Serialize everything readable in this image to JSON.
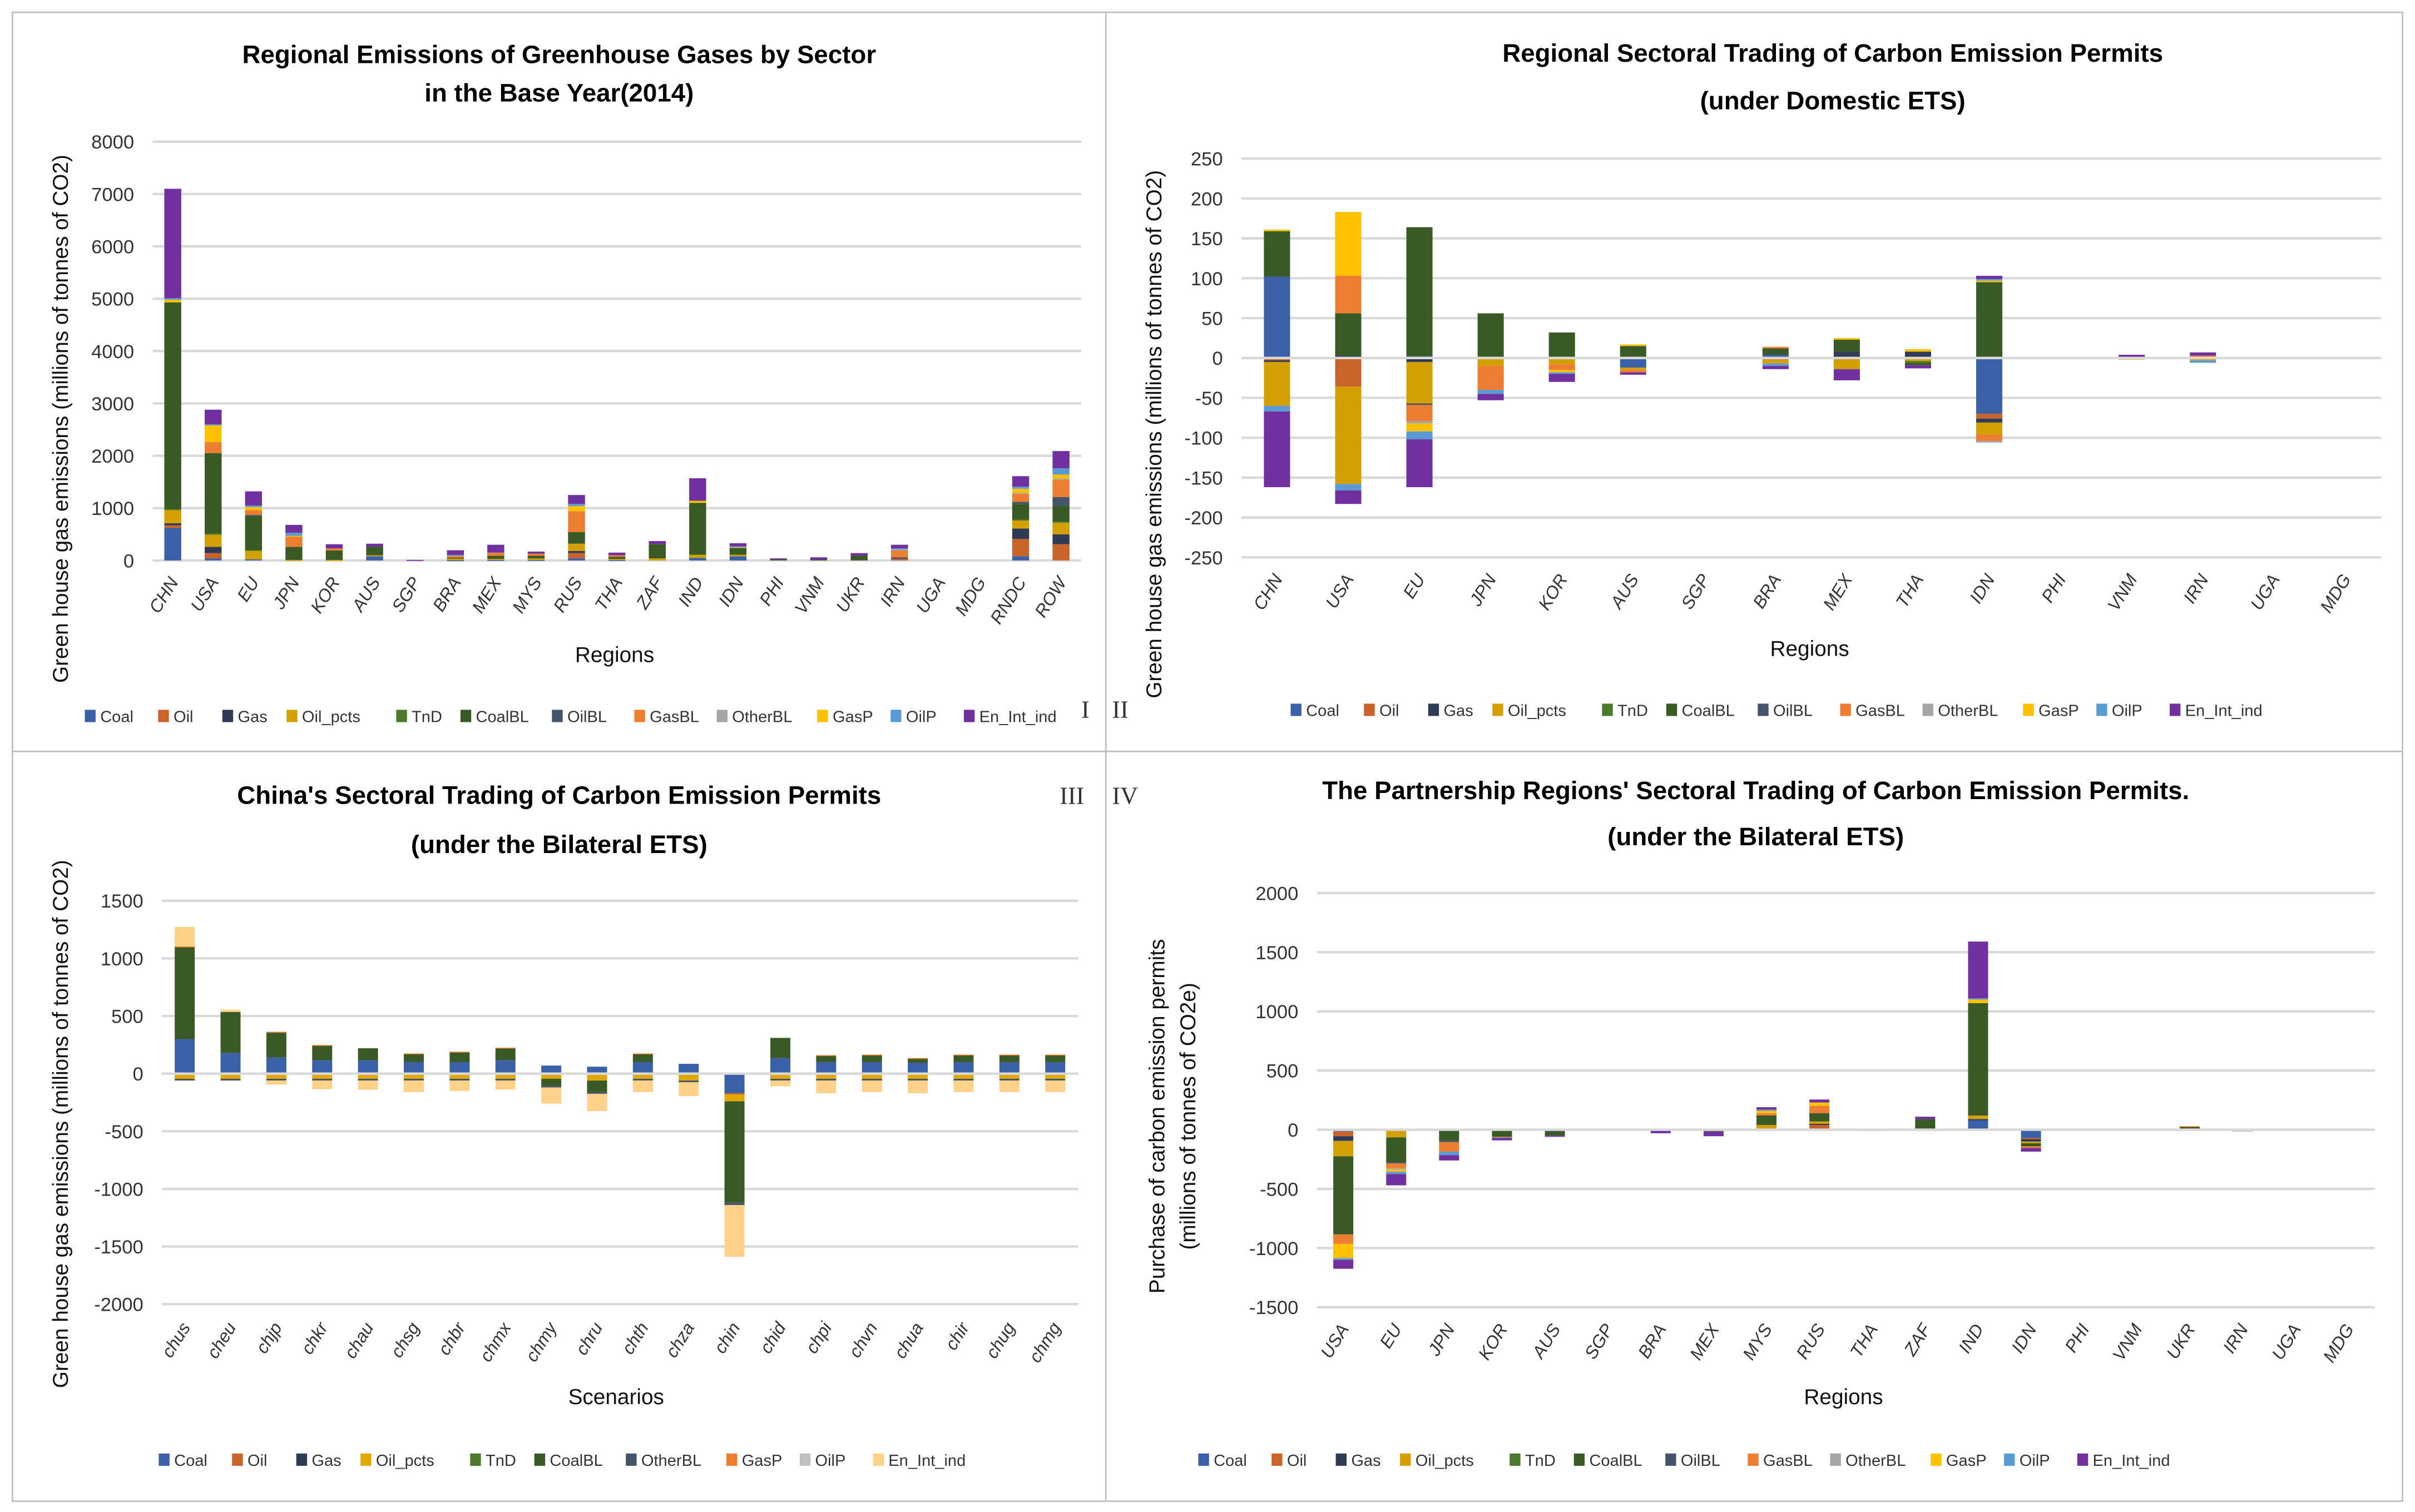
{
  "panel_labels": {
    "p1": "I",
    "p2": "II",
    "p3": "III",
    "p4": "IV"
  },
  "chart_data": [
    {
      "type": "bar",
      "stacked": true,
      "title_lines": [
        "Regional Emissions of Greenhouse Gases by Sector",
        "in the Base Year(2014)"
      ],
      "xlabel": "Regions",
      "ylabel": "Green house gas  emissions (millions of tonnes of CO2)",
      "ylim": [
        0,
        8000
      ],
      "yticks": [
        0,
        1000,
        2000,
        3000,
        4000,
        5000,
        6000,
        7000,
        8000
      ],
      "grid": true,
      "legend_position": "bottom",
      "categories": [
        "CHN",
        "USA",
        "EU",
        "JPN",
        "KOR",
        "AUS",
        "SGP",
        "BRA",
        "MEX",
        "MYS",
        "RUS",
        "THA",
        "ZAF",
        "IND",
        "IDN",
        "PHI",
        "VNM",
        "UKR",
        "IRN",
        "UGA",
        "MDG",
        "RNDC",
        "ROW"
      ],
      "series": [
        {
          "name": "Coal",
          "color": "#3a60a8",
          "values": {
            "CHN": 620,
            "USA": 40,
            "EU": 20,
            "AUS": 80,
            "BRA": 5,
            "MEX": 10,
            "MYS": 10,
            "RUS": 40,
            "THA": 10,
            "IND": 50,
            "IDN": 80,
            "RNDC": 80
          }
        },
        {
          "name": "Oil",
          "color": "#c8642a",
          "values": {
            "CHN": 50,
            "USA": 100,
            "RUS": 100,
            "IRN": 30,
            "RNDC": 330,
            "ROW": 310
          }
        },
        {
          "name": "Gas",
          "color": "#2f3b55",
          "values": {
            "CHN": 40,
            "USA": 120,
            "RUS": 40,
            "RNDC": 200,
            "ROW": 190
          }
        },
        {
          "name": "Oil_pcts",
          "color": "#d4a000",
          "values": {
            "CHN": 260,
            "USA": 240,
            "EU": 170,
            "JPN": 10,
            "KOR": 10,
            "AUS": 20,
            "BRA": 30,
            "MEX": 20,
            "MYS": 30,
            "RUS": 140,
            "THA": 20,
            "ZAF": 40,
            "IND": 60,
            "IDN": 30,
            "RNDC": 160,
            "ROW": 220
          }
        },
        {
          "name": "TnD",
          "color": "#4a7a2a",
          "values": {
            "CHN": 10,
            "USA": 10,
            "EU": 10,
            "RNDC": 10,
            "ROW": 20
          }
        },
        {
          "name": "CoalBL",
          "color": "#3a5a25",
          "values": {
            "CHN": 3950,
            "USA": 1540,
            "EU": 650,
            "JPN": 250,
            "KOR": 180,
            "AUS": 160,
            "BRA": 20,
            "MEX": 60,
            "MYS": 50,
            "RUS": 220,
            "THA": 40,
            "ZAF": 270,
            "IND": 990,
            "IDN": 130,
            "PHI": 20,
            "VNM": 20,
            "UKR": 90,
            "RNDC": 300,
            "ROW": 300
          }
        },
        {
          "name": "OilBL",
          "color": "#44546a",
          "values": {
            "EU": 20,
            "IRN": 30,
            "RNDC": 40,
            "ROW": 170
          }
        },
        {
          "name": "GasBL",
          "color": "#ed7d31",
          "values": {
            "USA": 210,
            "EU": 90,
            "JPN": 200,
            "KOR": 40,
            "BRA": 30,
            "MEX": 60,
            "MYS": 40,
            "RUS": 400,
            "THA": 30,
            "IRN": 130,
            "RNDC": 150,
            "ROW": 330
          }
        },
        {
          "name": "OtherBL",
          "color": "#a5a5a5",
          "values": {
            "IRN": 20,
            "RNDC": 20,
            "ROW": 20
          }
        },
        {
          "name": "GasP",
          "color": "#ffc000",
          "values": {
            "CHN": 50,
            "USA": 320,
            "EU": 60,
            "JPN": 10,
            "RUS": 100,
            "IND": 40,
            "IDN": 20,
            "RNDC": 80,
            "ROW": 80
          }
        },
        {
          "name": "OilP",
          "color": "#5b9bd5",
          "values": {
            "CHN": 30,
            "USA": 20,
            "EU": 30,
            "JPN": 60,
            "BRA": 20,
            "RUS": 40,
            "IDN": 10,
            "IRN": 20,
            "RNDC": 40,
            "ROW": 120
          }
        },
        {
          "name": "En_Int_ind",
          "color": "#7030a0",
          "values": {
            "CHN": 2090,
            "USA": 280,
            "EU": 270,
            "JPN": 150,
            "KOR": 80,
            "AUS": 60,
            "SGP": 10,
            "BRA": 90,
            "MEX": 150,
            "MYS": 40,
            "RUS": 170,
            "THA": 50,
            "ZAF": 60,
            "IND": 430,
            "IDN": 60,
            "PHI": 20,
            "VNM": 40,
            "UKR": 50,
            "IRN": 70,
            "RNDC": 200,
            "ROW": 330
          }
        }
      ]
    },
    {
      "type": "bar",
      "stacked": true,
      "title_lines": [
        "Regional Sectoral Trading of Carbon Emission Permits",
        "(under Domestic ETS)"
      ],
      "xlabel": "Regions",
      "ylabel": "Green house gas  emissions (millions of tonnes of CO2)",
      "ylim": [
        -250,
        250
      ],
      "yticks": [
        -250,
        -200,
        -150,
        -100,
        -50,
        0,
        50,
        100,
        150,
        200,
        250
      ],
      "grid": true,
      "legend_position": "bottom",
      "categories": [
        "CHN",
        "USA",
        "EU",
        "JPN",
        "KOR",
        "AUS",
        "SGP",
        "BRA",
        "MEX",
        "THA",
        "IDN",
        "PHI",
        "VNM",
        "IRN",
        "UGA",
        "MDG"
      ],
      "series": [
        {
          "name": "Coal",
          "color": "#3a60a8",
          "values": {
            "CHN": 102,
            "EU": 2,
            "AUS": -12,
            "BRA": 4,
            "IDN": -70
          }
        },
        {
          "name": "Oil",
          "color": "#c8642a",
          "values": {
            "CHN": -3,
            "USA": -36,
            "BRA": -2,
            "MEX": -2,
            "IDN": -6
          }
        },
        {
          "name": "Gas",
          "color": "#2f3b55",
          "values": {
            "CHN": -2,
            "USA": 3,
            "EU": -5,
            "MEX": 8,
            "THA": 8,
            "IDN": -5
          }
        },
        {
          "name": "Oil_pcts",
          "color": "#d4a000",
          "values": {
            "CHN": -55,
            "USA": -122,
            "EU": -52,
            "JPN": -10,
            "KOR": -8,
            "AUS": -3,
            "BRA": -5,
            "MEX": -12,
            "THA": -4,
            "IDN": -15,
            "VNM": -2,
            "IRN": -3
          }
        },
        {
          "name": "TnD",
          "color": "#4a7a2a",
          "values": {
            "THA": -2
          }
        },
        {
          "name": "CoalBL",
          "color": "#3a5a25",
          "values": {
            "CHN": 57,
            "USA": 53,
            "EU": 162,
            "JPN": 56,
            "KOR": 32,
            "AUS": 15,
            "BRA": 8,
            "MEX": 15,
            "THA": -3,
            "IDN": 95
          }
        },
        {
          "name": "OilBL",
          "color": "#44546a",
          "values": {
            "EU": -2
          }
        },
        {
          "name": "GasBL",
          "color": "#ed7d31",
          "values": {
            "USA": 47,
            "EU": -20,
            "JPN": -30,
            "KOR": -7,
            "AUS": -3,
            "BRA": 2,
            "IDN": -8,
            "IRN": 3
          }
        },
        {
          "name": "OtherBL",
          "color": "#a5a5a5",
          "values": {
            "EU": -3,
            "IDN": -2
          }
        },
        {
          "name": "GasP",
          "color": "#ffc000",
          "values": {
            "CHN": 2,
            "USA": 80,
            "EU": -10,
            "KOR": -3,
            "AUS": 2,
            "SGP": 1,
            "MEX": 2,
            "THA": 3,
            "IDN": 2
          }
        },
        {
          "name": "OilP",
          "color": "#5b9bd5",
          "values": {
            "CHN": -7,
            "USA": -8,
            "EU": -10,
            "JPN": -5,
            "KOR": -2,
            "BRA": -3,
            "IDN": 2,
            "IRN": -3
          }
        },
        {
          "name": "En_Int_ind",
          "color": "#7030a0",
          "values": {
            "CHN": -95,
            "USA": -17,
            "EU": -60,
            "JPN": -8,
            "KOR": -10,
            "AUS": -3,
            "SGP": -1,
            "BRA": -4,
            "MEX": -14,
            "THA": -4,
            "IDN": 4,
            "PHI": -1,
            "VNM": 4,
            "IRN": 4
          }
        }
      ]
    },
    {
      "type": "bar",
      "stacked": true,
      "title_lines": [
        "China's Sectoral Trading of Carbon Emission Permits",
        "(under the Bilateral ETS)"
      ],
      "xlabel": "Scenarios",
      "ylabel": "Green house gas  emissions (millions of tonnes of CO2)",
      "ylim": [
        -2000,
        1500
      ],
      "yticks": [
        -2000,
        -1500,
        -1000,
        -500,
        0,
        500,
        1000,
        1500
      ],
      "grid": true,
      "legend_position": "bottom",
      "categories": [
        "chus",
        "cheu",
        "chjp",
        "chkr",
        "chau",
        "chsg",
        "chbr",
        "chmx",
        "chmy",
        "chru",
        "chth",
        "chza",
        "chin",
        "chid",
        "chpi",
        "chvn",
        "chua",
        "chir",
        "chug",
        "chmg"
      ],
      "series": [
        {
          "name": "Coal",
          "color": "#3a60a8",
          "values": {
            "chus": 300,
            "cheu": 180,
            "chjp": 140,
            "chkr": 115,
            "chau": 115,
            "chsg": 100,
            "chbr": 100,
            "chmx": 115,
            "chmy": 70,
            "chru": 60,
            "chth": 100,
            "chza": 85,
            "chin": -170,
            "chid": 135,
            "chpi": 100,
            "chvn": 100,
            "chua": 95,
            "chir": 100,
            "chug": 100,
            "chmg": 100
          }
        },
        {
          "name": "Oil",
          "color": "#c8642a",
          "values": {
            "chin": -10
          }
        },
        {
          "name": "Gas",
          "color": "#2f3b55",
          "values": {}
        },
        {
          "name": "Oil_pcts",
          "color": "#e0a800",
          "values": {
            "chus": -45,
            "cheu": -45,
            "chjp": -45,
            "chkr": -45,
            "chau": -45,
            "chsg": -45,
            "chbr": -45,
            "chmx": -45,
            "chmy": -45,
            "chru": -60,
            "chth": -45,
            "chza": -60,
            "chin": -60,
            "chid": -45,
            "chpi": -45,
            "chvn": -45,
            "chua": -45,
            "chir": -45,
            "chug": -45,
            "chmg": -45
          }
        },
        {
          "name": "TnD",
          "color": "#4a7a2a",
          "values": {}
        },
        {
          "name": "CoalBL",
          "color": "#3a5a25",
          "values": {
            "chus": 800,
            "cheu": 355,
            "chjp": 215,
            "chkr": 130,
            "chau": 105,
            "chsg": 70,
            "chbr": 85,
            "chmx": 105,
            "chmy": -60,
            "chru": -100,
            "chth": 70,
            "chin": -880,
            "chid": 175,
            "chpi": 55,
            "chvn": 60,
            "chua": 35,
            "chir": 60,
            "chug": 60,
            "chmg": 60
          }
        },
        {
          "name": "OtherBL",
          "color": "#44546a",
          "values": {
            "chus": -15,
            "cheu": -15,
            "chjp": -15,
            "chkr": -15,
            "chau": -15,
            "chsg": -15,
            "chbr": -15,
            "chmx": -15,
            "chmy": -15,
            "chru": -15,
            "chth": -15,
            "chza": -15,
            "chin": -20,
            "chid": -15,
            "chpi": -15,
            "chvn": -15,
            "chua": -15,
            "chir": -15,
            "chug": -15,
            "chmg": -15
          }
        },
        {
          "name": "GasP",
          "color": "#ed7d31",
          "values": {
            "chus": 3,
            "chjp": 8,
            "chkr": 3,
            "chsg": 5,
            "chbr": 5,
            "chmx": 5,
            "chth": 5,
            "chpi": 5,
            "chvn": 5,
            "chua": 5,
            "chir": 5,
            "chug": 5,
            "chmg": 5
          }
        },
        {
          "name": "OilP",
          "color": "#c0c0c0",
          "values": {}
        },
        {
          "name": "En_Int_ind",
          "color": "#ffd28a",
          "values": {
            "chus": 170,
            "cheu": 20,
            "chjp": -35,
            "chkr": -75,
            "chau": -80,
            "chsg": -100,
            "chbr": -90,
            "chmx": -80,
            "chmy": -140,
            "chru": -150,
            "chth": -100,
            "chza": -120,
            "chin": -450,
            "chid": -50,
            "chpi": -110,
            "chvn": -100,
            "chua": -110,
            "chir": -100,
            "chug": -100,
            "chmg": -100
          }
        }
      ]
    },
    {
      "type": "bar",
      "stacked": true,
      "title_lines": [
        "The Partnership Regions' Sectoral Trading of Carbon Emission Permits.",
        "(under the Bilateral ETS)"
      ],
      "xlabel": "Regions",
      "ylabel_lines": [
        "Purchase of carbon emission permits",
        "(millions of tonnes of CO2e)"
      ],
      "ylim": [
        -1500,
        2000
      ],
      "yticks": [
        -1500,
        -1000,
        -500,
        0,
        500,
        1000,
        1500,
        2000
      ],
      "grid": true,
      "legend_position": "bottom",
      "categories": [
        "USA",
        "EU",
        "JPN",
        "KOR",
        "AUS",
        "SGP",
        "BRA",
        "MEX",
        "MYS",
        "RUS",
        "THA",
        "ZAF",
        "IND",
        "IDN",
        "PHI",
        "VNM",
        "UKR",
        "IRN",
        "UGA",
        "MDG"
      ],
      "series": [
        {
          "name": "Coal",
          "color": "#3a60a8",
          "values": {
            "USA": -15,
            "AUS": -5,
            "IND": 80,
            "IDN": -70
          }
        },
        {
          "name": "Oil",
          "color": "#c8642a",
          "values": {
            "USA": -40,
            "RUS": 40,
            "IDN": -10
          }
        },
        {
          "name": "Gas",
          "color": "#2f3b55",
          "values": {
            "USA": -40,
            "AUS": -10,
            "MYS": 10,
            "RUS": 10,
            "IND": 10,
            "IDN": -20
          }
        },
        {
          "name": "Oil_pcts",
          "color": "#d4a000",
          "values": {
            "USA": -130,
            "EU": -65,
            "KOR": -10,
            "BRA": -10,
            "MEX": -10,
            "MYS": 30,
            "RUS": 20,
            "ZAF": 10,
            "IND": 30,
            "IDN": -15,
            "UKR": 10
          }
        },
        {
          "name": "TnD",
          "color": "#4a7a2a",
          "values": {
            "MEX": -5
          }
        },
        {
          "name": "CoalBL",
          "color": "#3a5a25",
          "values": {
            "USA": -660,
            "EU": -210,
            "JPN": -95,
            "KOR": -50,
            "AUS": -35,
            "MYS": 80,
            "RUS": 70,
            "ZAF": 80,
            "IND": 950,
            "IDN": -25,
            "UKR": 15
          }
        },
        {
          "name": "OilBL",
          "color": "#44546a",
          "values": {
            "EU": -10,
            "JPN": -10
          }
        },
        {
          "name": "GasBL",
          "color": "#ed7d31",
          "values": {
            "USA": -80,
            "EU": -40,
            "JPN": -80,
            "KOR": -5,
            "MYS": 20,
            "RUS": 60,
            "UKR": 5,
            "IDN": -15
          }
        },
        {
          "name": "OtherBL",
          "color": "#a5a5a5",
          "values": {
            "EU": -10,
            "IRN": -15,
            "MDG": -5
          }
        },
        {
          "name": "GasP",
          "color": "#ffc000",
          "values": {
            "USA": -120,
            "EU": -20,
            "MYS": 20,
            "RUS": 30,
            "IND": 30
          }
        },
        {
          "name": "OilP",
          "color": "#5b9bd5",
          "values": {
            "USA": -15,
            "EU": -20,
            "JPN": -30,
            "KOR": -5,
            "MYS": 10,
            "IND": 10
          }
        },
        {
          "name": "En_Int_ind",
          "color": "#7030a0",
          "values": {
            "USA": -75,
            "EU": -95,
            "JPN": -45,
            "KOR": -20,
            "AUS": -10,
            "SGP": -5,
            "BRA": -20,
            "MEX": -40,
            "MYS": 20,
            "RUS": 25,
            "THA": -10,
            "ZAF": 20,
            "IND": 480,
            "IDN": -30,
            "IRN": 5
          }
        }
      ]
    }
  ]
}
